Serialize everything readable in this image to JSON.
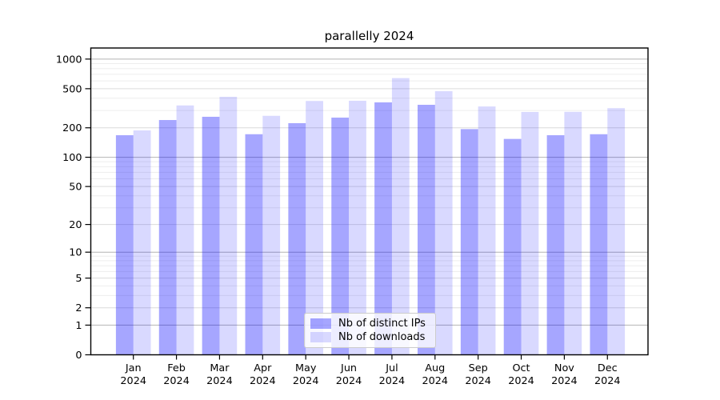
{
  "chart_data": {
    "type": "bar",
    "title": "parallelly 2024",
    "categories": [
      "Jan",
      "Feb",
      "Mar",
      "Apr",
      "May",
      "Jun",
      "Jul",
      "Aug",
      "Sep",
      "Oct",
      "Nov",
      "Dec"
    ],
    "year": "2024",
    "series": [
      {
        "name": "Nb of distinct IPs",
        "color": "rgba(0,0,255,0.35)",
        "values": [
          168,
          240,
          259,
          172,
          223,
          254,
          363,
          343,
          194,
          154,
          168,
          172
        ]
      },
      {
        "name": "Nb of downloads",
        "color": "rgba(0,0,255,0.15)",
        "values": [
          188,
          338,
          414,
          265,
          375,
          377,
          641,
          472,
          330,
          290,
          291,
          317
        ]
      }
    ],
    "yscale": "log1p",
    "yticks": [
      0,
      1,
      2,
      5,
      10,
      20,
      50,
      100,
      200,
      500,
      1000
    ],
    "ytick_labels": [
      "0",
      "1",
      "2",
      "5",
      "10",
      "20",
      "50",
      "100",
      "200",
      "500",
      "1000"
    ],
    "ylim": [
      0,
      1300
    ],
    "grid": true,
    "legend_position": "lower center"
  },
  "colors": {
    "axis_frame": "#000000",
    "grid_major": "#b4b4b4",
    "grid_mid": "#dcdcdc",
    "grid_minor": "#ededed",
    "background": "#ffffff"
  }
}
